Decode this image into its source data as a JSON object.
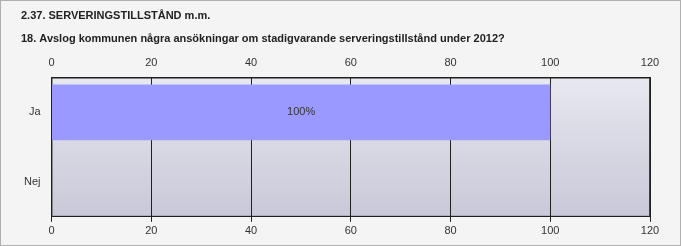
{
  "chart_data": {
    "type": "bar",
    "orientation": "horizontal",
    "title": "2.37. SERVERINGSTILLSTÅND m.m.",
    "subtitle": "18. Avslog kommunen några ansökningar om stadigvarande serveringstillstånd under 2012?",
    "categories": [
      "Ja",
      "Nej"
    ],
    "values": [
      100,
      0
    ],
    "value_labels": [
      "100%",
      null
    ],
    "data_labels": true,
    "color": "#9999ff",
    "xlim": [
      0,
      120
    ],
    "xticks": [
      0,
      20,
      40,
      60,
      80,
      100,
      120
    ],
    "grid": true
  }
}
